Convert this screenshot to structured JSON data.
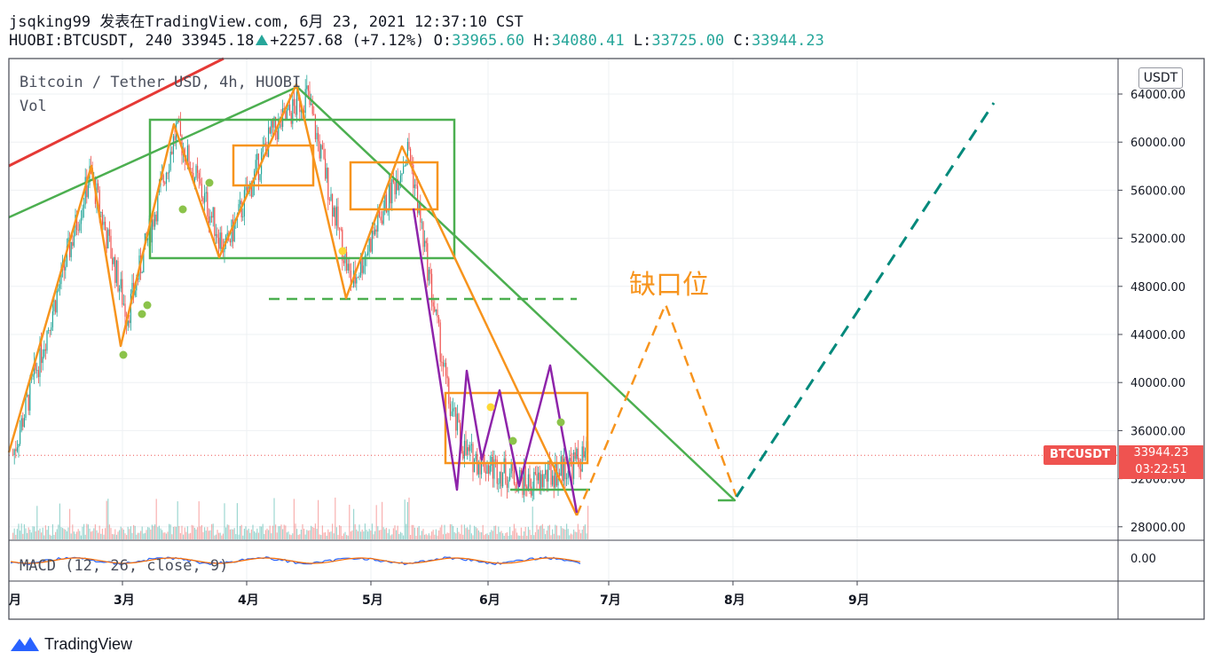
{
  "header": {
    "line1": "jsqking99 发表在TradingView.com, 6月 23, 2021 12:37:10 CST",
    "symbol": "HUOBI:BTCUSDT, 240",
    "last": "33945.18",
    "change": "+2257.68 (+7.12%)",
    "o_label": "O:",
    "o_val": "33965.60",
    "h_label": "H:",
    "h_val": "34080.41",
    "l_label": "L:",
    "l_val": "33725.00",
    "c_label": "C:",
    "c_val": "33944.23"
  },
  "legend": {
    "title": "Bitcoin / Tether USD, 4h, HUOBI",
    "vol": "Vol",
    "macd": "MACD (12, 26, close, 9)"
  },
  "currency_button": "USDT",
  "price_axis": {
    "ticks": [
      "64000.00",
      "60000.00",
      "56000.00",
      "52000.00",
      "48000.00",
      "44000.00",
      "40000.00",
      "36000.00",
      "32000.00",
      "28000.00"
    ],
    "macd_tick": "0.00"
  },
  "time_axis": {
    "ticks": [
      "月",
      "3月",
      "4月",
      "5月",
      "6月",
      "7月",
      "8月",
      "9月"
    ]
  },
  "current_price": {
    "symbol_label": "BTCUSDT",
    "price": "33944.23",
    "countdown": "03:22:51"
  },
  "annotation": "缺口位",
  "brand": "TradingView",
  "colors": {
    "up": "#26a69a",
    "down": "#ef5350",
    "orange": "#f7941d",
    "green": "#4caf50",
    "purple": "#8e24aa",
    "red": "#e53935",
    "teal_dash": "#00897b"
  },
  "chart_data": {
    "type": "line",
    "title": "Bitcoin / Tether USD, 4h, HUOBI",
    "x": [
      "2021-02-01",
      "2021-02-20",
      "2021-03-01",
      "2021-03-13",
      "2021-03-25",
      "2021-04-05",
      "2021-04-14",
      "2021-04-25",
      "2021-05-09",
      "2021-05-19",
      "2021-05-23",
      "2021-06-08",
      "2021-06-22"
    ],
    "y": [
      34000,
      57500,
      45500,
      61000,
      51000,
      60500,
      64000,
      48000,
      59500,
      38000,
      34000,
      31500,
      33944
    ],
    "ylim": [
      26000,
      67000
    ],
    "xlabel": "",
    "ylabel": "",
    "grid": true
  }
}
